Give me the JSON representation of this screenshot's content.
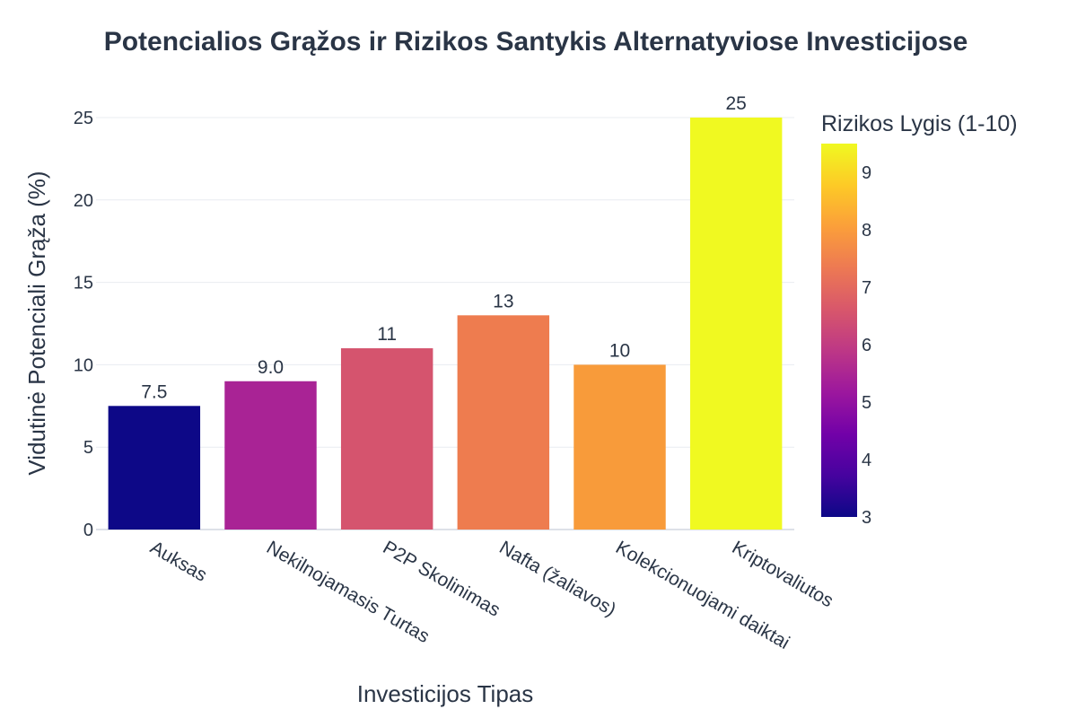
{
  "chart_data": {
    "type": "bar",
    "title": "Potencialios Grąžos ir Rizikos Santykis Alternatyviose Investicijose",
    "xlabel": "Investicijos Tipas",
    "ylabel": "Vidutinė Potenciali Grąža (%)",
    "categories": [
      "Auksas",
      "Nekilnojamasis Turtas",
      "P2P Skolinimas",
      "Nafta (žaliavos)",
      "Kolekcionuojami daiktai",
      "Kriptovaliutos"
    ],
    "values": [
      7.5,
      9.0,
      11,
      13,
      10,
      25
    ],
    "data_labels": [
      "7.5",
      "9.0",
      "11",
      "13",
      "10",
      "25"
    ],
    "risk_levels": [
      3,
      5.5,
      6.5,
      7.5,
      8,
      9.5
    ],
    "colors": [
      "#0d0887",
      "#a92395",
      "#d5546e",
      "#ee7c4f",
      "#f89b3a",
      "#f0f921"
    ],
    "ylim": [
      0,
      25
    ],
    "yticks": [
      0,
      5,
      10,
      15,
      20,
      25
    ],
    "grid": true,
    "legend": "none",
    "colorbar": {
      "title": "Rizikos Lygis (1-10)",
      "range": [
        3,
        9.5
      ],
      "ticks": [
        3,
        4,
        5,
        6,
        7,
        8,
        9
      ],
      "colorscale": [
        "#0d0887",
        "#46039f",
        "#7201a8",
        "#9c179e",
        "#bd3786",
        "#d8576b",
        "#ed7953",
        "#fb9f3a",
        "#fdca26",
        "#f0f921"
      ]
    }
  }
}
